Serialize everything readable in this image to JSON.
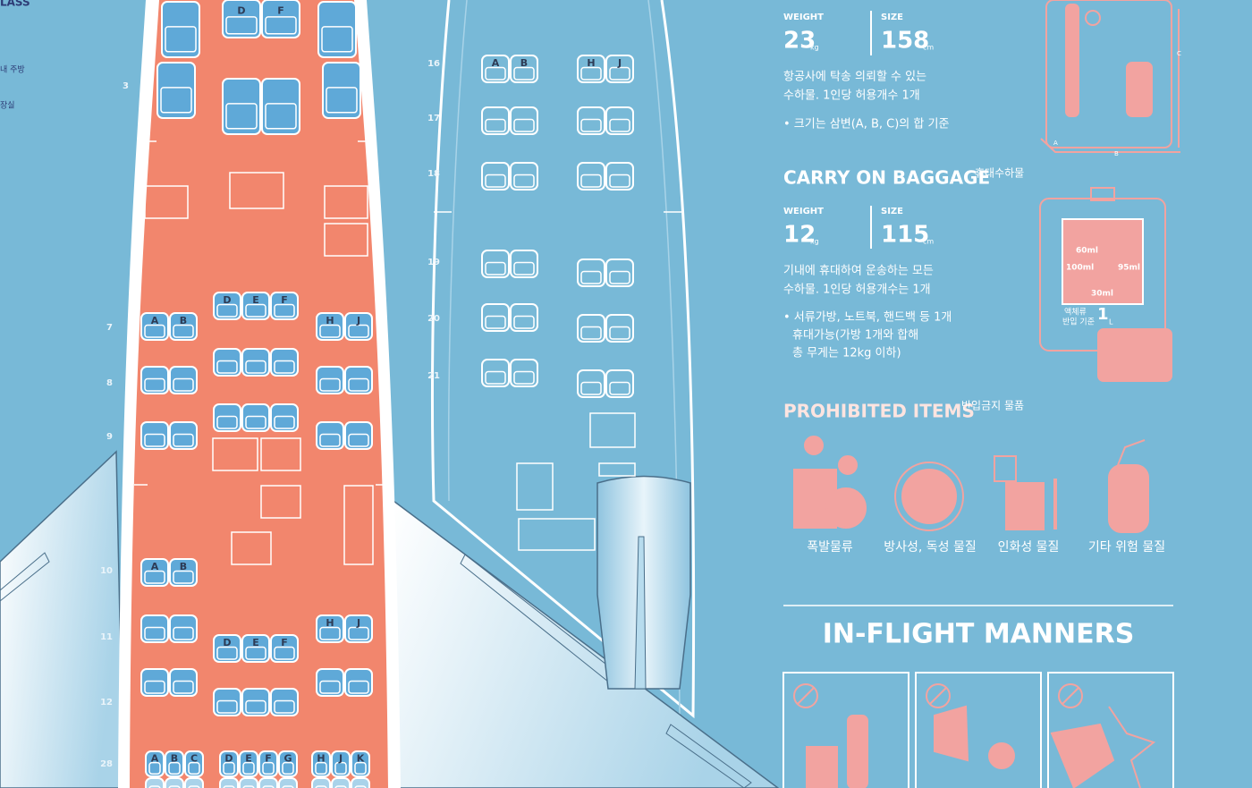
{
  "left_plane": {
    "class_label": "LASS",
    "legend": [
      "내 주방",
      "장실"
    ],
    "rows": [
      "3",
      "7",
      "8",
      "9",
      "10",
      "11",
      "12",
      "28"
    ],
    "seat_labels": [
      [
        "D",
        "F"
      ],
      [
        "A",
        "B"
      ],
      [
        "D",
        "E",
        "F"
      ],
      [
        "H",
        "J"
      ],
      [
        "A",
        "B"
      ],
      [
        "H",
        "J"
      ],
      [
        "D",
        "E",
        "F"
      ],
      [
        "A",
        "B",
        "C"
      ],
      [
        "D",
        "E",
        "F",
        "G"
      ],
      [
        "H",
        "J",
        "K"
      ]
    ]
  },
  "right_plane": {
    "rows": [
      "16",
      "17",
      "18",
      "19",
      "20",
      "21"
    ],
    "seat_labels": [
      [
        "A",
        "B"
      ],
      [
        "H",
        "J"
      ]
    ]
  },
  "checked_baggage": {
    "weight_label": "WEIGHT",
    "weight": "23",
    "weight_unit": "kg",
    "size_label": "SIZE",
    "size": "158",
    "size_unit": "cm",
    "description": [
      "항공사에 탁송 의뢰할 수 있는",
      "수하물. 1인당 허용개수 1개"
    ],
    "note": "• 크기는 삼변(A, B, C)의 합 기준",
    "dimensions": [
      "A",
      "B",
      "C"
    ]
  },
  "carry_on": {
    "title": "CARRY ON BAGGAGE",
    "title_ko": "휴대수하물",
    "weight_label": "WEIGHT",
    "weight": "12",
    "weight_unit": "kg",
    "size_label": "SIZE",
    "size": "115",
    "size_unit": "cm",
    "description": [
      "기내에 휴대하여 운송하는 모든",
      "수하물. 1인당 허용개수는 1개"
    ],
    "note": [
      "• 서류가방, 노트북, 핸드백 등 1개",
      "휴대가능(가방 1개와 합해",
      "총 무게는 12kg 이하)"
    ],
    "liquids": [
      "60ml",
      "100ml",
      "95ml",
      "30ml"
    ],
    "liquid_label": [
      "액체류",
      "반입 기준"
    ],
    "liquid_limit": "1",
    "liquid_unit": "L"
  },
  "prohibited": {
    "title": "PROHIBITED ITEMS",
    "title_ko": "반입금지 물품",
    "items": [
      "폭발물류",
      "방사성, 독성 물질",
      "인화성 물질",
      "기타 위험 물질"
    ]
  },
  "manners": {
    "title": "IN-FLIGHT MANNERS"
  }
}
